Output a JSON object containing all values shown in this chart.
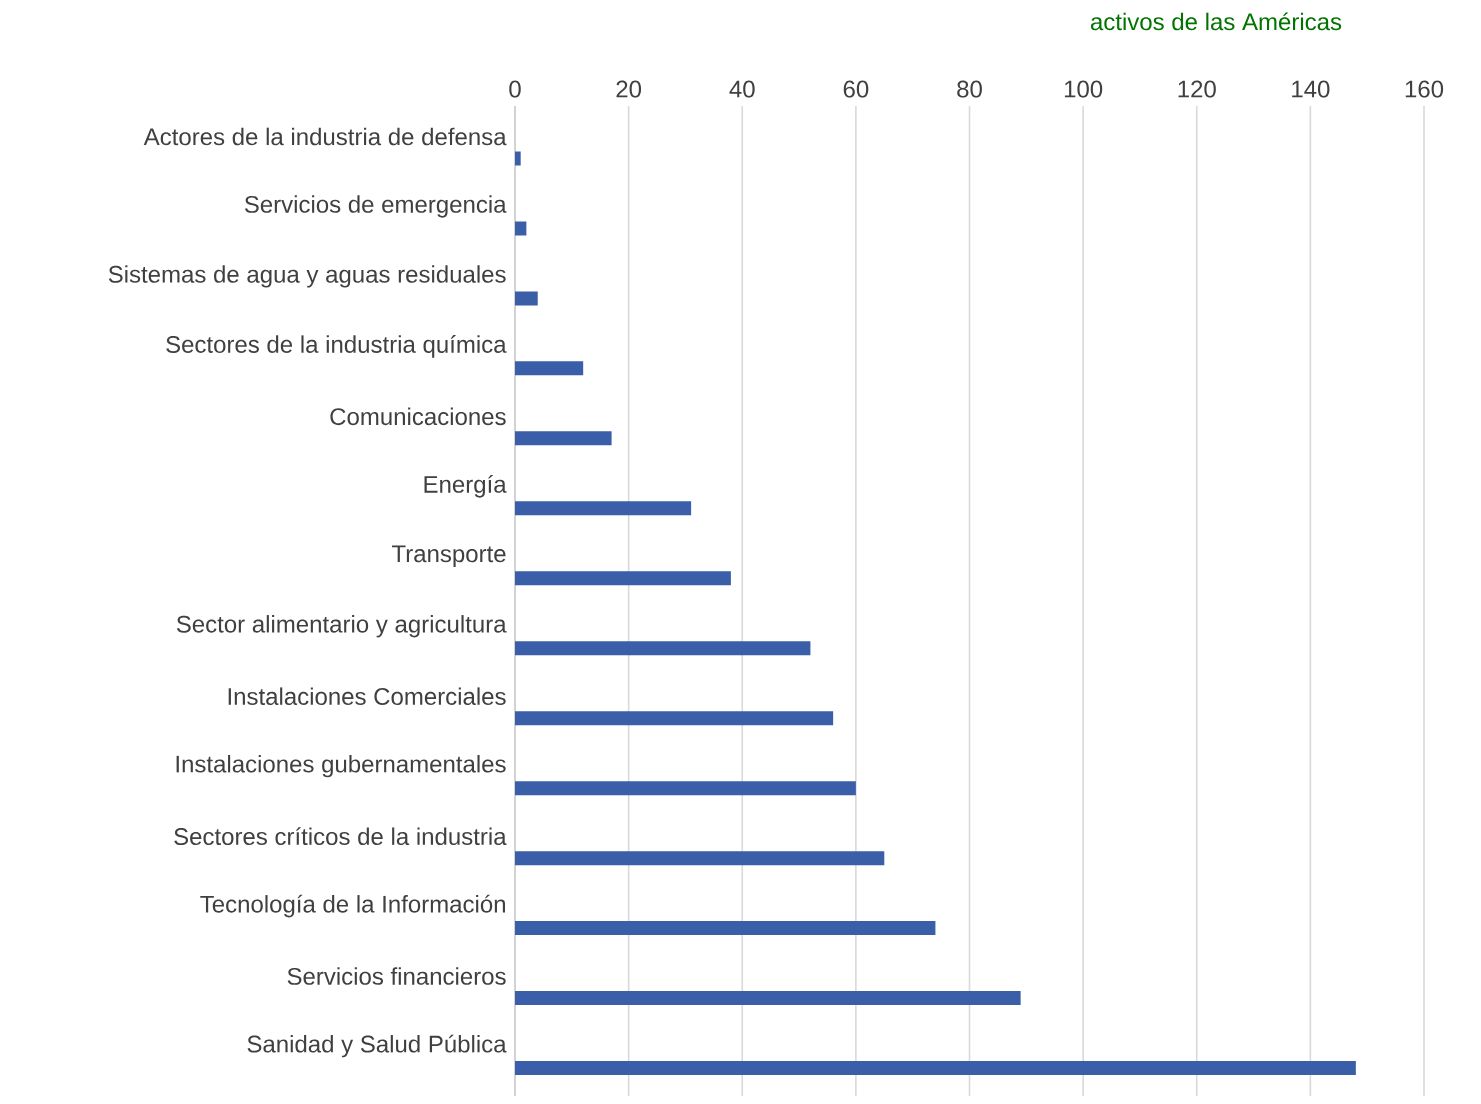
{
  "chart_data": {
    "type": "bar",
    "orientation": "horizontal",
    "title": "activos de las Américas",
    "categories": [
      "Actores de la industria de defensa",
      "Servicios de emergencia",
      "Sistemas de agua y aguas residuales",
      "Sectores de la industria química",
      "Comunicaciones",
      "Energía",
      "Transporte",
      "Sector alimentario y agricultura",
      "Instalaciones Comerciales",
      "Instalaciones gubernamentales",
      "Sectores críticos de la industria",
      "Tecnología de la Información",
      "Servicios financieros",
      "Sanidad y Salud Pública"
    ],
    "values": [
      1,
      2,
      4,
      12,
      17,
      31,
      38,
      52,
      56,
      60,
      65,
      74,
      89,
      148
    ],
    "color": "#3a5ea8",
    "xlim": [
      0,
      160
    ],
    "xticks": [
      0,
      20,
      40,
      60,
      80,
      100,
      120,
      140,
      160
    ],
    "grid": "x"
  }
}
